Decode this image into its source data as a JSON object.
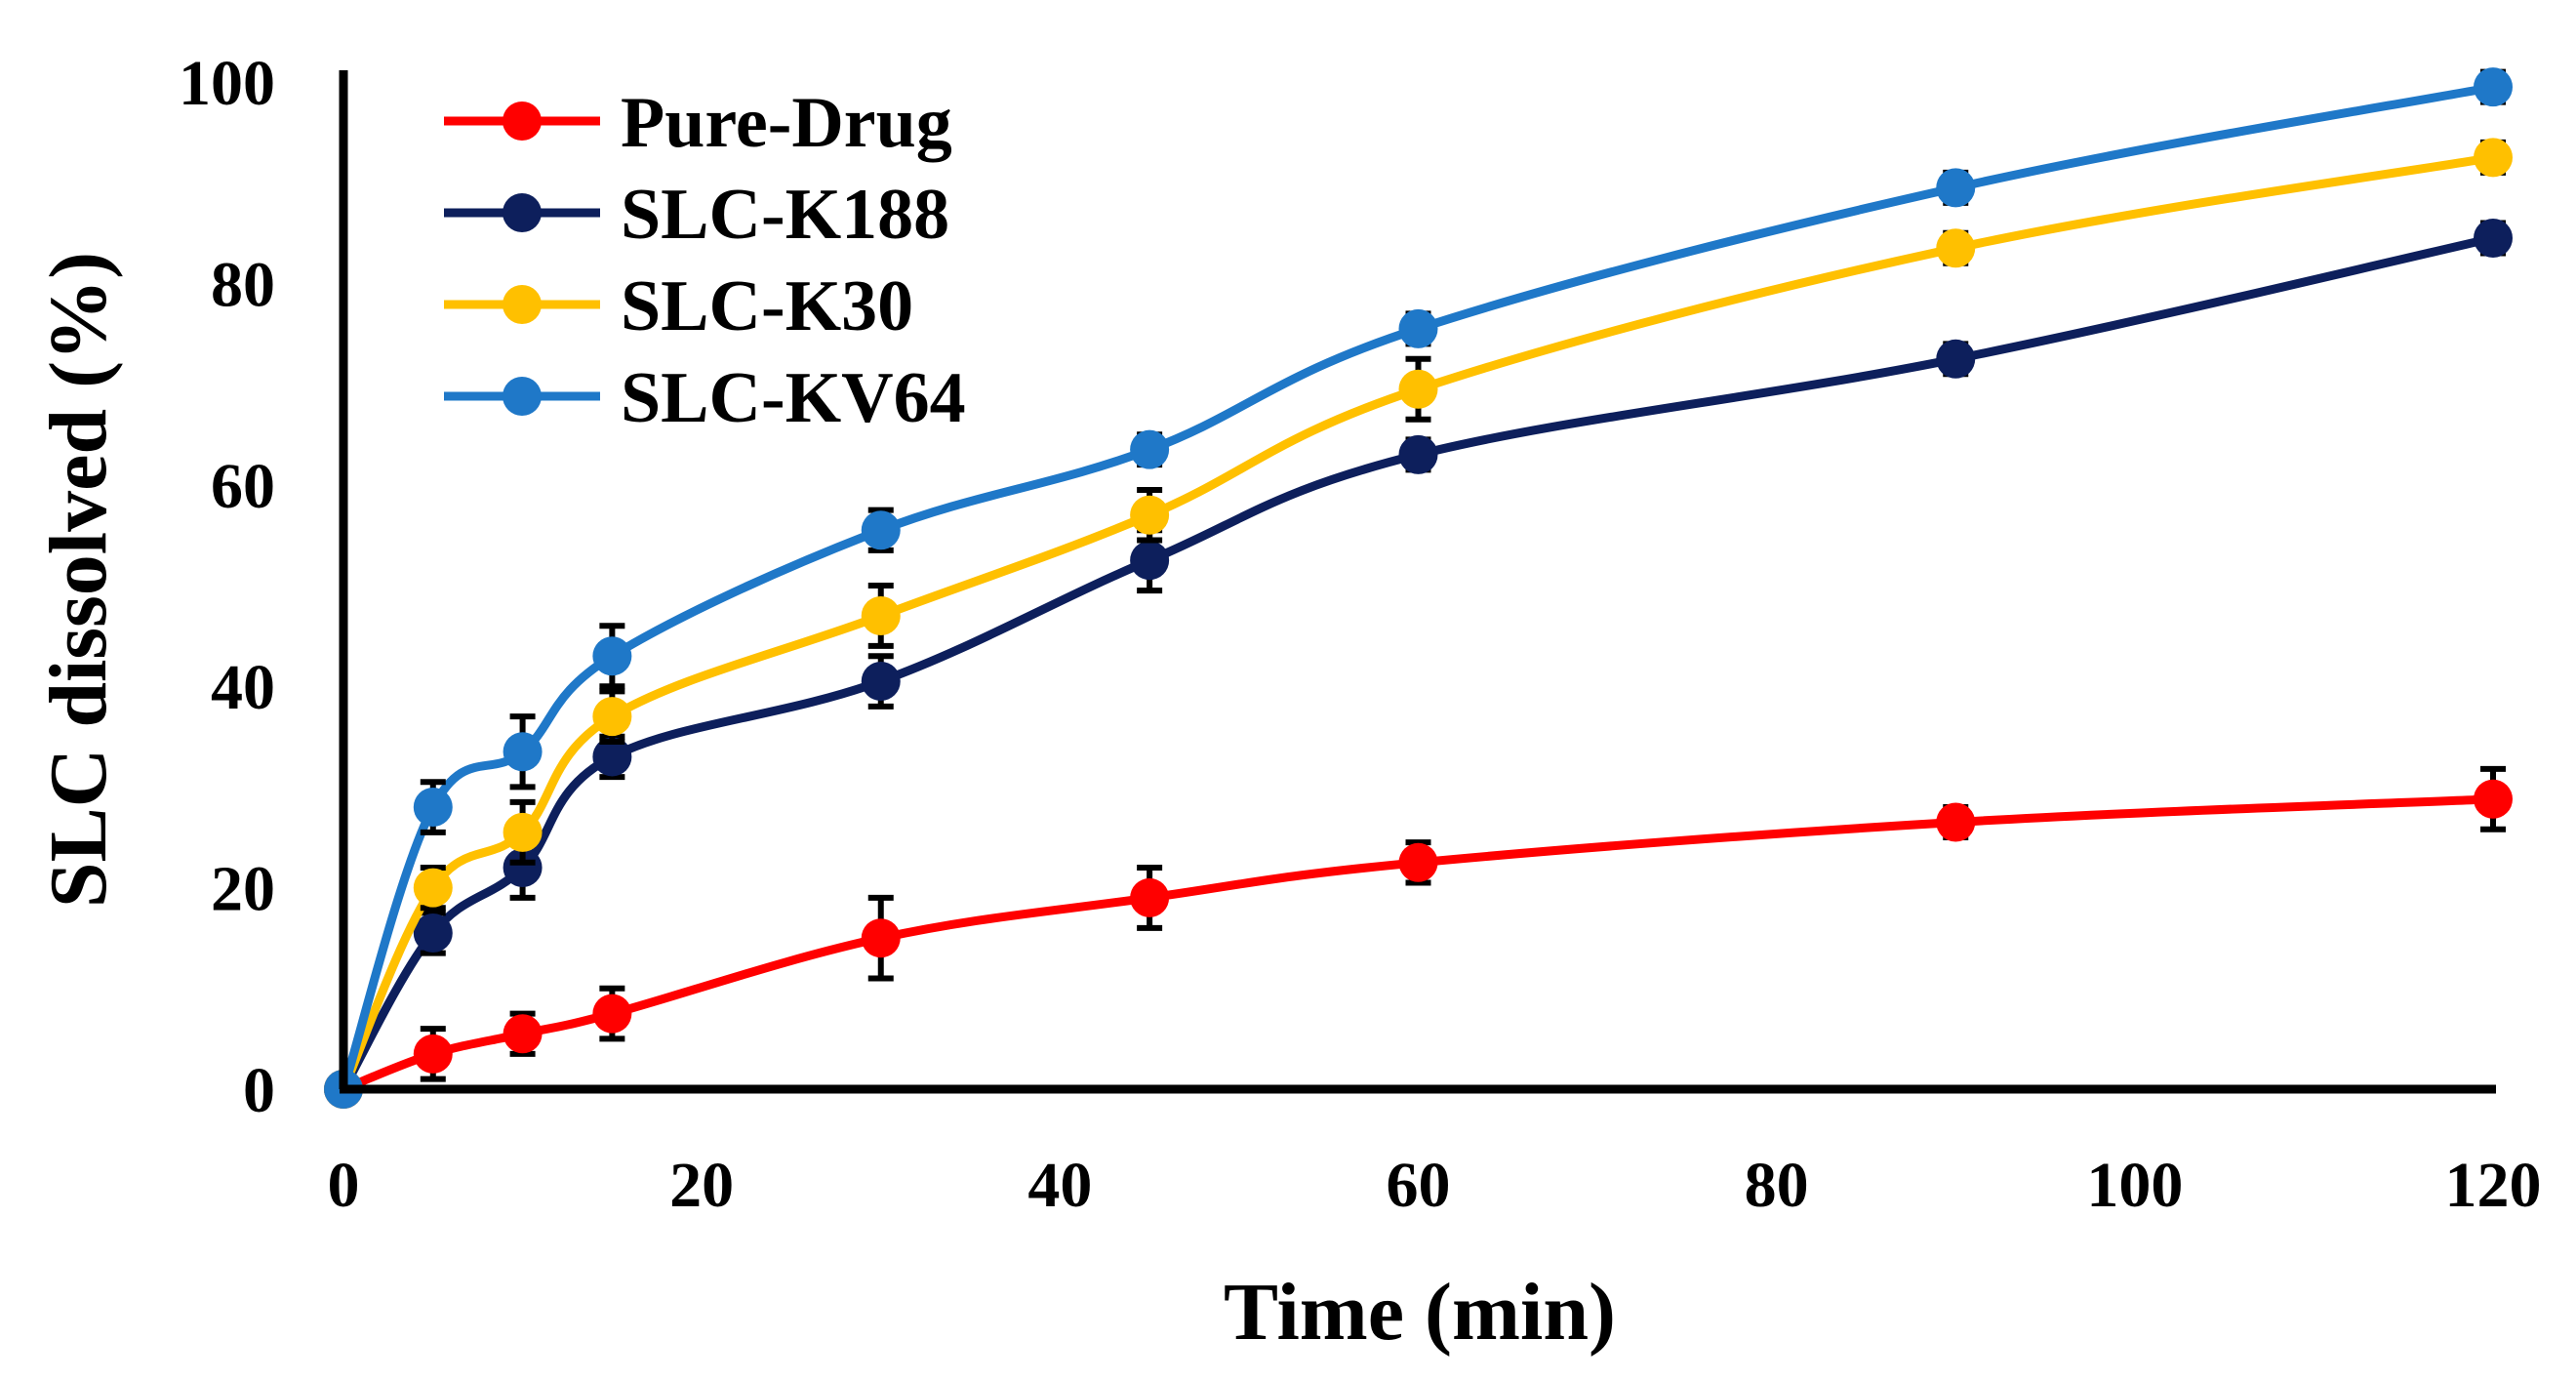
{
  "chart_data": {
    "type": "line",
    "title": "",
    "xlabel": "Time (min)",
    "ylabel": "SLC dissolved (%)",
    "xlim": [
      0,
      120
    ],
    "ylim": [
      0,
      100
    ],
    "x_ticks": [
      "0",
      "20",
      "40",
      "60",
      "80",
      "100",
      "120"
    ],
    "y_ticks": [
      "0",
      "20",
      "40",
      "60",
      "80",
      "100"
    ],
    "grid": false,
    "legend_position": "top-left",
    "x": [
      0,
      5,
      10,
      15,
      30,
      45,
      60,
      90,
      120
    ],
    "series": [
      {
        "name": "Pure-Drug",
        "color": "#ff0000",
        "values": [
          0,
          3.5,
          5.5,
          7.5,
          15,
          19,
          22.5,
          26.5,
          28.8
        ],
        "errors": [
          0,
          2.5,
          2,
          2.5,
          4,
          3,
          2,
          1.5,
          3
        ]
      },
      {
        "name": "SLC-K188",
        "color": "#0d1f5c",
        "values": [
          0,
          15.5,
          22,
          33,
          40.5,
          52.5,
          63,
          72.5,
          84.5
        ],
        "errors": [
          0,
          2,
          3,
          2,
          2.5,
          3,
          1.5,
          1.5,
          1.5
        ]
      },
      {
        "name": "SLC-K30",
        "color": "#ffc000",
        "values": [
          0,
          20,
          25.5,
          37,
          47,
          57,
          69.5,
          83.5,
          92.5
        ],
        "errors": [
          0,
          2,
          3,
          2.5,
          3,
          2.5,
          3,
          1.5,
          1.5
        ]
      },
      {
        "name": "SLC-KV64",
        "color": "#1f78c8",
        "values": [
          0,
          28,
          33.5,
          43,
          55.5,
          63.5,
          75.5,
          89.5,
          99.5
        ],
        "errors": [
          0,
          2.5,
          3.5,
          3,
          2,
          1.5,
          1.5,
          1.5,
          1.5
        ]
      }
    ]
  }
}
